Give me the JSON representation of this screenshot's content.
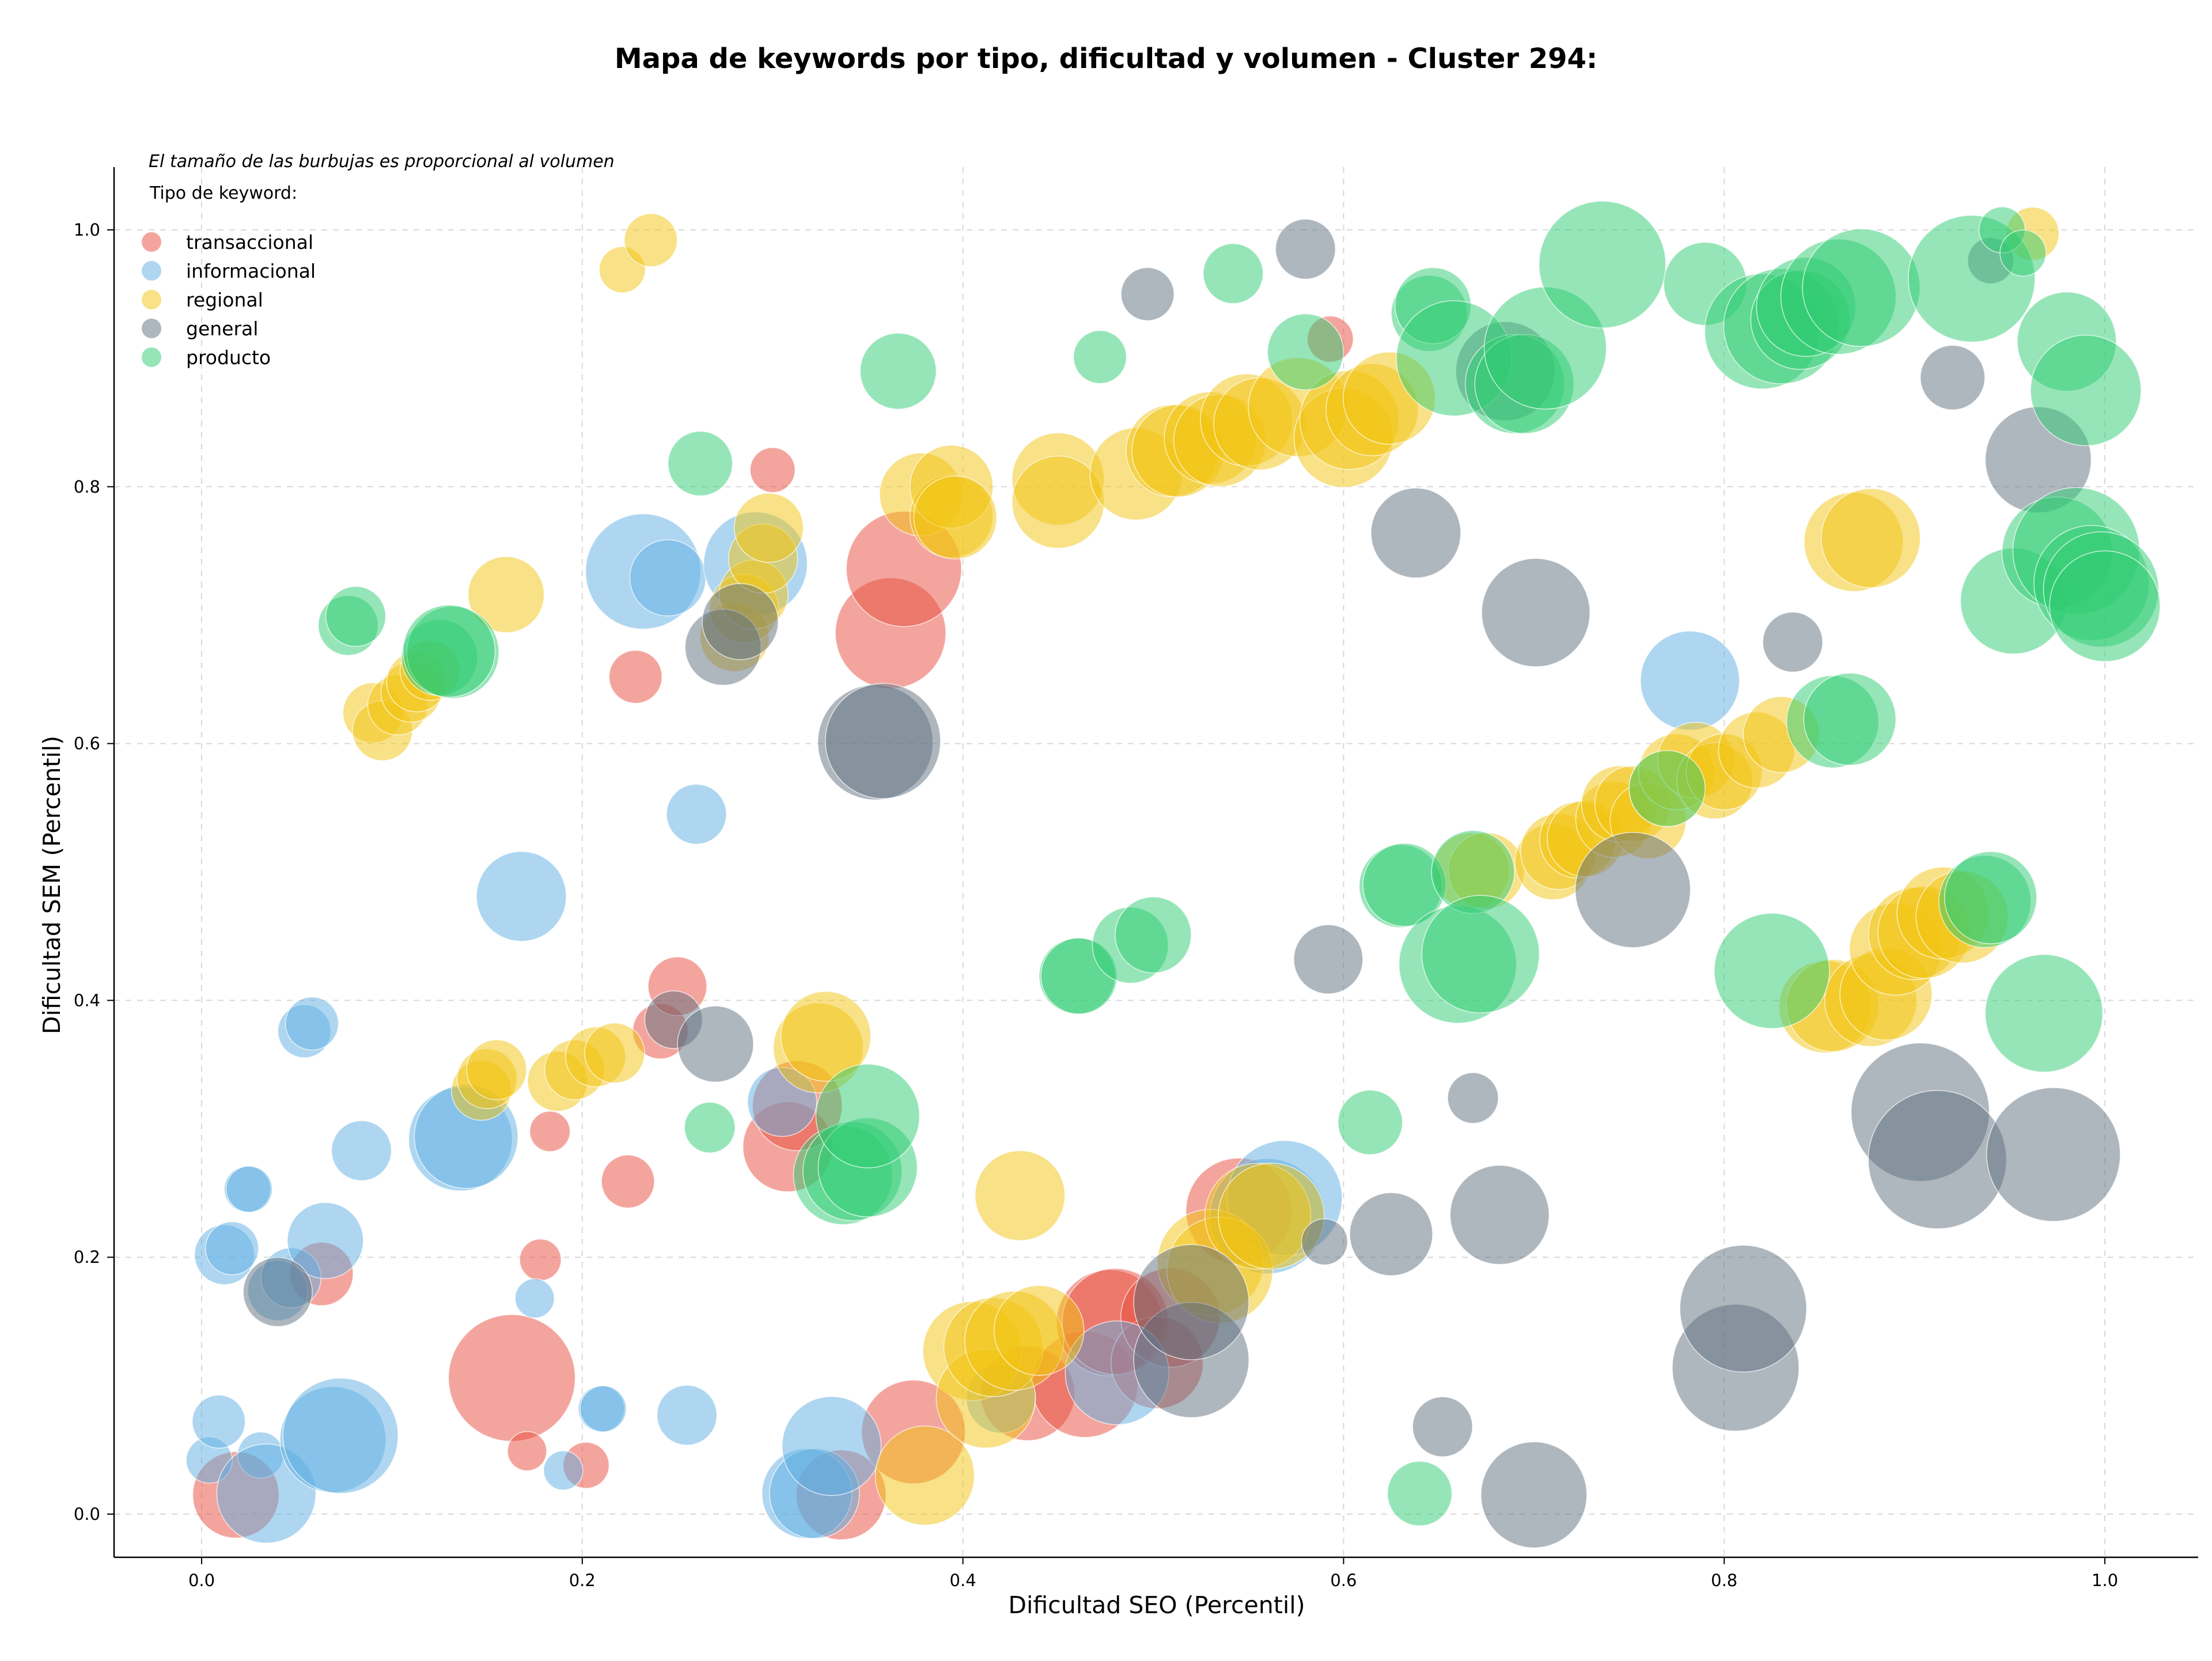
{
  "chart_data": {
    "type": "scatter",
    "title": "Mapa de keywords por tipo, dificultad y volumen - Cluster 294:",
    "xlabel": "Dificultad SEO (Percentil)",
    "ylabel": "Dificultad SEM (Percentil)",
    "note": "El tamaño de las burbujas es proporcional al volumen",
    "xlim": [
      -0.045,
      1.05
    ],
    "ylim": [
      -0.033,
      1.05
    ],
    "x_ticks": [
      "0.0",
      "0.2",
      "0.4",
      "0.6",
      "0.8",
      "1.0"
    ],
    "y_ticks": [
      "0.0",
      "0.2",
      "0.4",
      "0.6",
      "0.8",
      "1.0"
    ],
    "grid": true,
    "legend": {
      "title": "Tipo de keyword:",
      "position": "top-left"
    },
    "series": [
      {
        "name": "transaccional",
        "color": "#e74c3c",
        "points": [
          [
            0.018,
            0.015,
            75
          ],
          [
            0.063,
            0.187,
            55
          ],
          [
            0.163,
            0.106,
            110
          ],
          [
            0.171,
            0.049,
            34
          ],
          [
            0.178,
            0.198,
            36
          ],
          [
            0.183,
            0.298,
            35
          ],
          [
            0.202,
            0.038,
            40
          ],
          [
            0.224,
            0.259,
            46
          ],
          [
            0.228,
            0.652,
            46
          ],
          [
            0.241,
            0.376,
            48
          ],
          [
            0.25,
            0.411,
            51
          ],
          [
            0.3,
            0.813,
            39
          ],
          [
            0.308,
            0.286,
            78
          ],
          [
            0.313,
            0.318,
            78
          ],
          [
            0.336,
            0.015,
            78
          ],
          [
            0.362,
            0.686,
            96
          ],
          [
            0.369,
            0.736,
            100
          ],
          [
            0.374,
            0.064,
            90
          ],
          [
            0.434,
            0.094,
            82
          ],
          [
            0.464,
            0.101,
            92
          ],
          [
            0.477,
            0.149,
            92
          ],
          [
            0.48,
            0.15,
            92
          ],
          [
            0.502,
            0.118,
            80
          ],
          [
            0.509,
            0.153,
            86
          ],
          [
            0.545,
            0.236,
            92
          ],
          [
            0.593,
            0.915,
            40
          ]
        ]
      },
      {
        "name": "informacional",
        "color": "#5dade2",
        "points": [
          [
            0.004,
            0.042,
            40
          ],
          [
            0.009,
            0.072,
            46
          ],
          [
            0.012,
            0.202,
            52
          ],
          [
            0.016,
            0.207,
            46
          ],
          [
            0.024,
            0.253,
            40
          ],
          [
            0.025,
            0.253,
            40
          ],
          [
            0.031,
            0.046,
            40
          ],
          [
            0.034,
            0.016,
            86
          ],
          [
            0.04,
            0.174,
            52
          ],
          [
            0.047,
            0.184,
            52
          ],
          [
            0.054,
            0.376,
            46
          ],
          [
            0.058,
            0.382,
            46
          ],
          [
            0.065,
            0.213,
            66
          ],
          [
            0.069,
            0.058,
            92
          ],
          [
            0.073,
            0.061,
            100
          ],
          [
            0.084,
            0.283,
            52
          ],
          [
            0.136,
            0.292,
            90
          ],
          [
            0.139,
            0.294,
            90
          ],
          [
            0.168,
            0.481,
            78
          ],
          [
            0.175,
            0.168,
            34
          ],
          [
            0.19,
            0.034,
            34
          ],
          [
            0.21,
            0.082,
            40
          ],
          [
            0.211,
            0.082,
            40
          ],
          [
            0.232,
            0.734,
            100
          ],
          [
            0.245,
            0.729,
            66
          ],
          [
            0.255,
            0.077,
            52
          ],
          [
            0.26,
            0.545,
            52
          ],
          [
            0.291,
            0.74,
            90
          ],
          [
            0.305,
            0.321,
            60
          ],
          [
            0.318,
            0.016,
            78
          ],
          [
            0.322,
            0.016,
            78
          ],
          [
            0.331,
            0.053,
            86
          ],
          [
            0.42,
            0.09,
            60
          ],
          [
            0.481,
            0.11,
            90
          ],
          [
            0.56,
            0.232,
            100
          ],
          [
            0.569,
            0.246,
            100
          ],
          [
            0.782,
            0.649,
            86
          ]
        ]
      },
      {
        "name": "regional",
        "color": "#f1c40f",
        "points": [
          [
            0.09,
            0.624,
            52
          ],
          [
            0.095,
            0.61,
            52
          ],
          [
            0.103,
            0.63,
            52
          ],
          [
            0.11,
            0.64,
            52
          ],
          [
            0.113,
            0.648,
            52
          ],
          [
            0.12,
            0.657,
            52
          ],
          [
            0.147,
            0.33,
            52
          ],
          [
            0.15,
            0.339,
            52
          ],
          [
            0.155,
            0.346,
            52
          ],
          [
            0.16,
            0.716,
            66
          ],
          [
            0.187,
            0.337,
            52
          ],
          [
            0.196,
            0.346,
            52
          ],
          [
            0.207,
            0.356,
            52
          ],
          [
            0.217,
            0.359,
            52
          ],
          [
            0.221,
            0.969,
            40
          ],
          [
            0.236,
            0.992,
            46
          ],
          [
            0.28,
            0.683,
            60
          ],
          [
            0.285,
            0.705,
            60
          ],
          [
            0.29,
            0.716,
            60
          ],
          [
            0.295,
            0.744,
            60
          ],
          [
            0.298,
            0.768,
            60
          ],
          [
            0.324,
            0.363,
            78
          ],
          [
            0.328,
            0.372,
            78
          ],
          [
            0.38,
            0.03,
            86
          ],
          [
            0.378,
            0.794,
            72
          ],
          [
            0.394,
            0.777,
            72
          ],
          [
            0.394,
            0.8,
            72
          ],
          [
            0.396,
            0.776,
            72
          ],
          [
            0.405,
            0.127,
            86
          ],
          [
            0.412,
            0.09,
            86
          ],
          [
            0.416,
            0.13,
            86
          ],
          [
            0.427,
            0.135,
            86
          ],
          [
            0.43,
            0.248,
            78
          ],
          [
            0.44,
            0.143,
            78
          ],
          [
            0.45,
            0.806,
            80
          ],
          [
            0.45,
            0.788,
            80
          ],
          [
            0.491,
            0.81,
            80
          ],
          [
            0.51,
            0.828,
            80
          ],
          [
            0.513,
            0.828,
            80
          ],
          [
            0.53,
            0.838,
            80
          ],
          [
            0.535,
            0.836,
            80
          ],
          [
            0.549,
            0.852,
            80
          ],
          [
            0.556,
            0.849,
            80
          ],
          [
            0.53,
            0.196,
            92
          ],
          [
            0.535,
            0.19,
            92
          ],
          [
            0.555,
            0.232,
            92
          ],
          [
            0.562,
            0.232,
            92
          ],
          [
            0.576,
            0.862,
            86
          ],
          [
            0.6,
            0.838,
            86
          ],
          [
            0.603,
            0.852,
            86
          ],
          [
            0.615,
            0.86,
            80
          ],
          [
            0.624,
            0.869,
            80
          ],
          [
            0.667,
            0.501,
            66
          ],
          [
            0.675,
            0.501,
            66
          ],
          [
            0.71,
            0.508,
            66
          ],
          [
            0.713,
            0.516,
            66
          ],
          [
            0.723,
            0.525,
            66
          ],
          [
            0.727,
            0.526,
            66
          ],
          [
            0.742,
            0.541,
            66
          ],
          [
            0.745,
            0.553,
            66
          ],
          [
            0.752,
            0.553,
            66
          ],
          [
            0.76,
            0.54,
            66
          ],
          [
            0.77,
            0.565,
            66
          ],
          [
            0.775,
            0.578,
            66
          ],
          [
            0.785,
            0.587,
            66
          ],
          [
            0.795,
            0.571,
            66
          ],
          [
            0.8,
            0.578,
            66
          ],
          [
            0.817,
            0.595,
            66
          ],
          [
            0.83,
            0.607,
            66
          ],
          [
            0.853,
            0.395,
            80
          ],
          [
            0.857,
            0.396,
            80
          ],
          [
            0.868,
            0.757,
            86
          ],
          [
            0.877,
            0.76,
            86
          ],
          [
            0.877,
            0.4,
            80
          ],
          [
            0.885,
            0.405,
            80
          ],
          [
            0.89,
            0.44,
            80
          ],
          [
            0.9,
            0.452,
            80
          ],
          [
            0.905,
            0.453,
            80
          ],
          [
            0.915,
            0.468,
            80
          ],
          [
            0.925,
            0.465,
            80
          ],
          [
            0.962,
            0.997,
            46
          ]
        ]
      },
      {
        "name": "general",
        "color": "#5d6d7e",
        "points": [
          [
            0.04,
            0.173,
            60
          ],
          [
            0.248,
            0.385,
            50
          ],
          [
            0.27,
            0.366,
            66
          ],
          [
            0.274,
            0.675,
            66
          ],
          [
            0.283,
            0.695,
            66
          ],
          [
            0.354,
            0.601,
            100
          ],
          [
            0.358,
            0.602,
            100
          ],
          [
            0.497,
            0.95,
            46
          ],
          [
            0.52,
            0.12,
            100
          ],
          [
            0.52,
            0.165,
            100
          ],
          [
            0.58,
            0.985,
            52
          ],
          [
            0.59,
            0.212,
            40
          ],
          [
            0.592,
            0.432,
            60
          ],
          [
            0.625,
            0.218,
            72
          ],
          [
            0.638,
            0.764,
            78
          ],
          [
            0.652,
            0.068,
            52
          ],
          [
            0.668,
            0.324,
            44
          ],
          [
            0.682,
            0.233,
            86
          ],
          [
            0.685,
            0.89,
            86
          ],
          [
            0.7,
            0.015,
            92
          ],
          [
            0.701,
            0.702,
            94
          ],
          [
            0.752,
            0.486,
            100
          ],
          [
            0.806,
            0.114,
            110
          ],
          [
            0.81,
            0.16,
            110
          ],
          [
            0.836,
            0.679,
            52
          ],
          [
            0.903,
            0.313,
            120
          ],
          [
            0.912,
            0.276,
            120
          ],
          [
            0.92,
            0.885,
            56
          ],
          [
            0.94,
            0.976,
            40
          ],
          [
            0.965,
            0.821,
            92
          ],
          [
            0.973,
            0.28,
            116
          ]
        ]
      },
      {
        "name": "producto",
        "color": "#2ecc71",
        "points": [
          [
            0.077,
            0.692,
            52
          ],
          [
            0.081,
            0.699,
            52
          ],
          [
            0.125,
            0.667,
            66
          ],
          [
            0.132,
            0.671,
            80
          ],
          [
            0.13,
            0.672,
            80
          ],
          [
            0.262,
            0.818,
            56
          ],
          [
            0.267,
            0.301,
            44
          ],
          [
            0.366,
            0.89,
            66
          ],
          [
            0.337,
            0.264,
            86
          ],
          [
            0.342,
            0.267,
            86
          ],
          [
            0.35,
            0.27,
            86
          ],
          [
            0.35,
            0.31,
            90
          ],
          [
            0.46,
            0.419,
            66
          ],
          [
            0.461,
            0.419,
            66
          ],
          [
            0.472,
            0.901,
            46
          ],
          [
            0.488,
            0.443,
            66
          ],
          [
            0.5,
            0.451,
            66
          ],
          [
            0.542,
            0.966,
            52
          ],
          [
            0.58,
            0.905,
            66
          ],
          [
            0.614,
            0.305,
            56
          ],
          [
            0.63,
            0.489,
            72
          ],
          [
            0.632,
            0.49,
            72
          ],
          [
            0.64,
            0.016,
            56
          ],
          [
            0.645,
            0.935,
            66
          ],
          [
            0.647,
            0.941,
            66
          ],
          [
            0.658,
            0.9,
            100
          ],
          [
            0.66,
            0.428,
            102
          ],
          [
            0.668,
            0.5,
            72
          ],
          [
            0.672,
            0.436,
            102
          ],
          [
            0.69,
            0.88,
            86
          ],
          [
            0.695,
            0.88,
            86
          ],
          [
            0.706,
            0.908,
            106
          ],
          [
            0.736,
            0.973,
            110
          ],
          [
            0.77,
            0.565,
            66
          ],
          [
            0.79,
            0.958,
            72
          ],
          [
            0.82,
            0.921,
            100
          ],
          [
            0.825,
            0.423,
            100
          ],
          [
            0.83,
            0.925,
            100
          ],
          [
            0.84,
            0.93,
            86
          ],
          [
            0.843,
            0.94,
            86
          ],
          [
            0.857,
            0.617,
            80
          ],
          [
            0.86,
            0.948,
            100
          ],
          [
            0.866,
            0.619,
            80
          ],
          [
            0.872,
            0.955,
            102
          ],
          [
            0.93,
            0.962,
            110
          ],
          [
            0.937,
            0.477,
            80
          ],
          [
            0.94,
            0.48,
            80
          ],
          [
            0.946,
            1.0,
            40
          ],
          [
            0.952,
            0.711,
            92
          ],
          [
            0.957,
            0.982,
            40
          ],
          [
            0.968,
            0.39,
            102
          ],
          [
            0.975,
            0.749,
            96
          ],
          [
            0.98,
            0.913,
            86
          ],
          [
            0.985,
            0.75,
            110
          ],
          [
            0.993,
            0.725,
            100
          ],
          [
            0.998,
            0.72,
            100
          ],
          [
            0.99,
            0.875,
            96
          ],
          [
            1.0,
            0.707,
            96
          ]
        ]
      }
    ]
  }
}
